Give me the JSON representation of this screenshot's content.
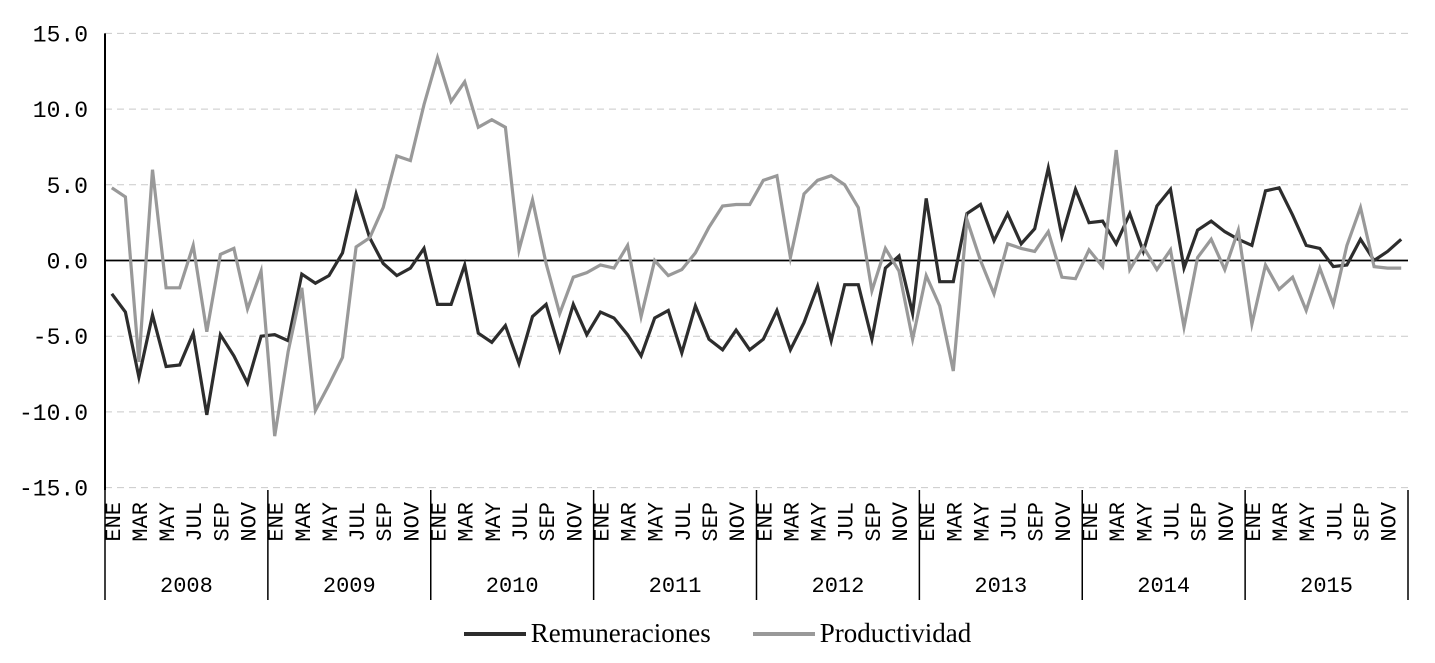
{
  "chart_data": {
    "type": "line",
    "title": "",
    "x_axis": {
      "years": [
        "2008",
        "2009",
        "2010",
        "2011",
        "2012",
        "2013",
        "2014",
        "2015"
      ],
      "month_tick_labels": [
        "ENE",
        "MAR",
        "MAY",
        "JUL",
        "SEP",
        "NOV"
      ],
      "months_per_year": 12
    },
    "y_axis": {
      "min": -15,
      "max": 15,
      "step": 5,
      "tick_labels": [
        "15.0",
        "10.0",
        "5.0",
        "0.0",
        "-5.0",
        "-10.0",
        "-15.0"
      ]
    },
    "grid": "horizontal-dashed",
    "zero_line": true,
    "legend_position": "bottom",
    "series": [
      {
        "name": "Remuneraciones",
        "color": "#2d2d2d",
        "values": [
          -2.2,
          -3.4,
          -7.7,
          -3.6,
          -7.0,
          -6.9,
          -4.8,
          -10.2,
          -4.9,
          -6.3,
          -8.1,
          -5.0,
          -4.9,
          -5.3,
          -0.9,
          -1.5,
          -1.0,
          0.5,
          4.4,
          1.5,
          -0.2,
          -1.0,
          -0.5,
          0.8,
          -2.9,
          -2.9,
          -0.3,
          -4.8,
          -5.4,
          -4.3,
          -6.8,
          -3.7,
          -2.9,
          -5.9,
          -2.9,
          -4.9,
          -3.4,
          -3.8,
          -4.9,
          -6.3,
          -3.8,
          -3.3,
          -6.1,
          -3.0,
          -5.2,
          -5.9,
          -4.6,
          -5.9,
          -5.2,
          -3.3,
          -5.9,
          -4.1,
          -1.7,
          -5.3,
          -1.6,
          -1.6,
          -5.2,
          -0.5,
          0.3,
          -3.5,
          4.1,
          -1.4,
          -1.4,
          3.1,
          3.7,
          1.3,
          3.1,
          1.1,
          2.1,
          6.1,
          1.6,
          4.7,
          2.5,
          2.6,
          1.1,
          3.1,
          0.6,
          3.6,
          4.7,
          -0.5,
          2.0,
          2.6,
          1.9,
          1.4,
          1.0,
          4.6,
          4.8,
          3.0,
          1.0,
          0.8,
          -0.4,
          -0.3,
          1.4,
          0.0,
          0.6,
          1.4
        ]
      },
      {
        "name": "Productividad",
        "color": "#999999",
        "values": [
          4.8,
          4.2,
          -6.7,
          6.0,
          -1.8,
          -1.8,
          1.0,
          -4.7,
          0.4,
          0.8,
          -3.2,
          -0.7,
          -11.6,
          -6.0,
          -1.8,
          -9.9,
          -8.2,
          -6.4,
          0.9,
          1.5,
          3.5,
          6.9,
          6.6,
          10.3,
          13.4,
          10.5,
          11.8,
          8.8,
          9.3,
          8.8,
          0.7,
          4.0,
          -0.2,
          -3.5,
          -1.1,
          -0.8,
          -0.3,
          -0.5,
          1.0,
          -3.7,
          0.0,
          -1.0,
          -0.6,
          0.5,
          2.2,
          3.6,
          3.7,
          3.7,
          5.3,
          5.6,
          0.2,
          4.4,
          5.3,
          5.6,
          5.0,
          3.5,
          -2.0,
          0.8,
          -0.7,
          -5.2,
          -1.0,
          -3.0,
          -7.3,
          2.7,
          0.0,
          -2.2,
          1.1,
          0.8,
          0.6,
          1.9,
          -1.1,
          -1.2,
          0.7,
          -0.4,
          7.3,
          -0.6,
          0.9,
          -0.6,
          0.7,
          -4.4,
          0.2,
          1.4,
          -0.6,
          2.0,
          -4.2,
          -0.3,
          -1.9,
          -1.1,
          -3.3,
          -0.5,
          -2.9,
          1.0,
          3.5,
          -0.4,
          -0.5,
          -0.5
        ]
      }
    ]
  },
  "legend": {
    "items": [
      {
        "label": "Remuneraciones",
        "color": "#2d2d2d"
      },
      {
        "label": "Productividad",
        "color": "#999999"
      }
    ]
  },
  "colors": {
    "background": "#ffffff",
    "gridline": "#c9c9c9",
    "axis": "#000000",
    "zero_line": "#000000",
    "tick_text": "#000000"
  }
}
